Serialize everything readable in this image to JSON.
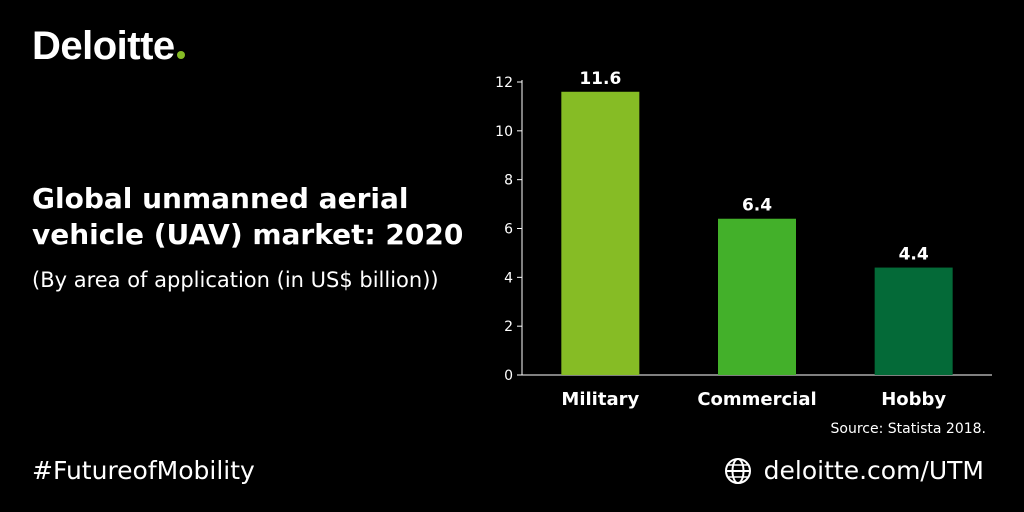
{
  "brand": {
    "name": "Deloitte",
    "dot_color": "#86BC25"
  },
  "title": "Global unmanned aerial vehicle (UAV) market: 2020",
  "subtitle": "(By area of application (in US$ billion))",
  "source": "Source: Statista 2018.",
  "footer": {
    "hashtag": "#FutureofMobility",
    "website": "deloitte.com/UTM",
    "website_icon": "globe-icon"
  },
  "chart_data": {
    "type": "bar",
    "categories": [
      "Military",
      "Commercial",
      "Hobby"
    ],
    "values": [
      11.6,
      6.4,
      4.4
    ],
    "data_labels": [
      "11.6",
      "6.4",
      "4.4"
    ],
    "colors": [
      "#86BC25",
      "#43B02A",
      "#046A38"
    ],
    "ylim": [
      0,
      12
    ],
    "yticks": [
      0,
      2,
      4,
      6,
      8,
      10,
      12
    ],
    "grid": false,
    "legend": "none",
    "xlabel": "",
    "ylabel": ""
  }
}
